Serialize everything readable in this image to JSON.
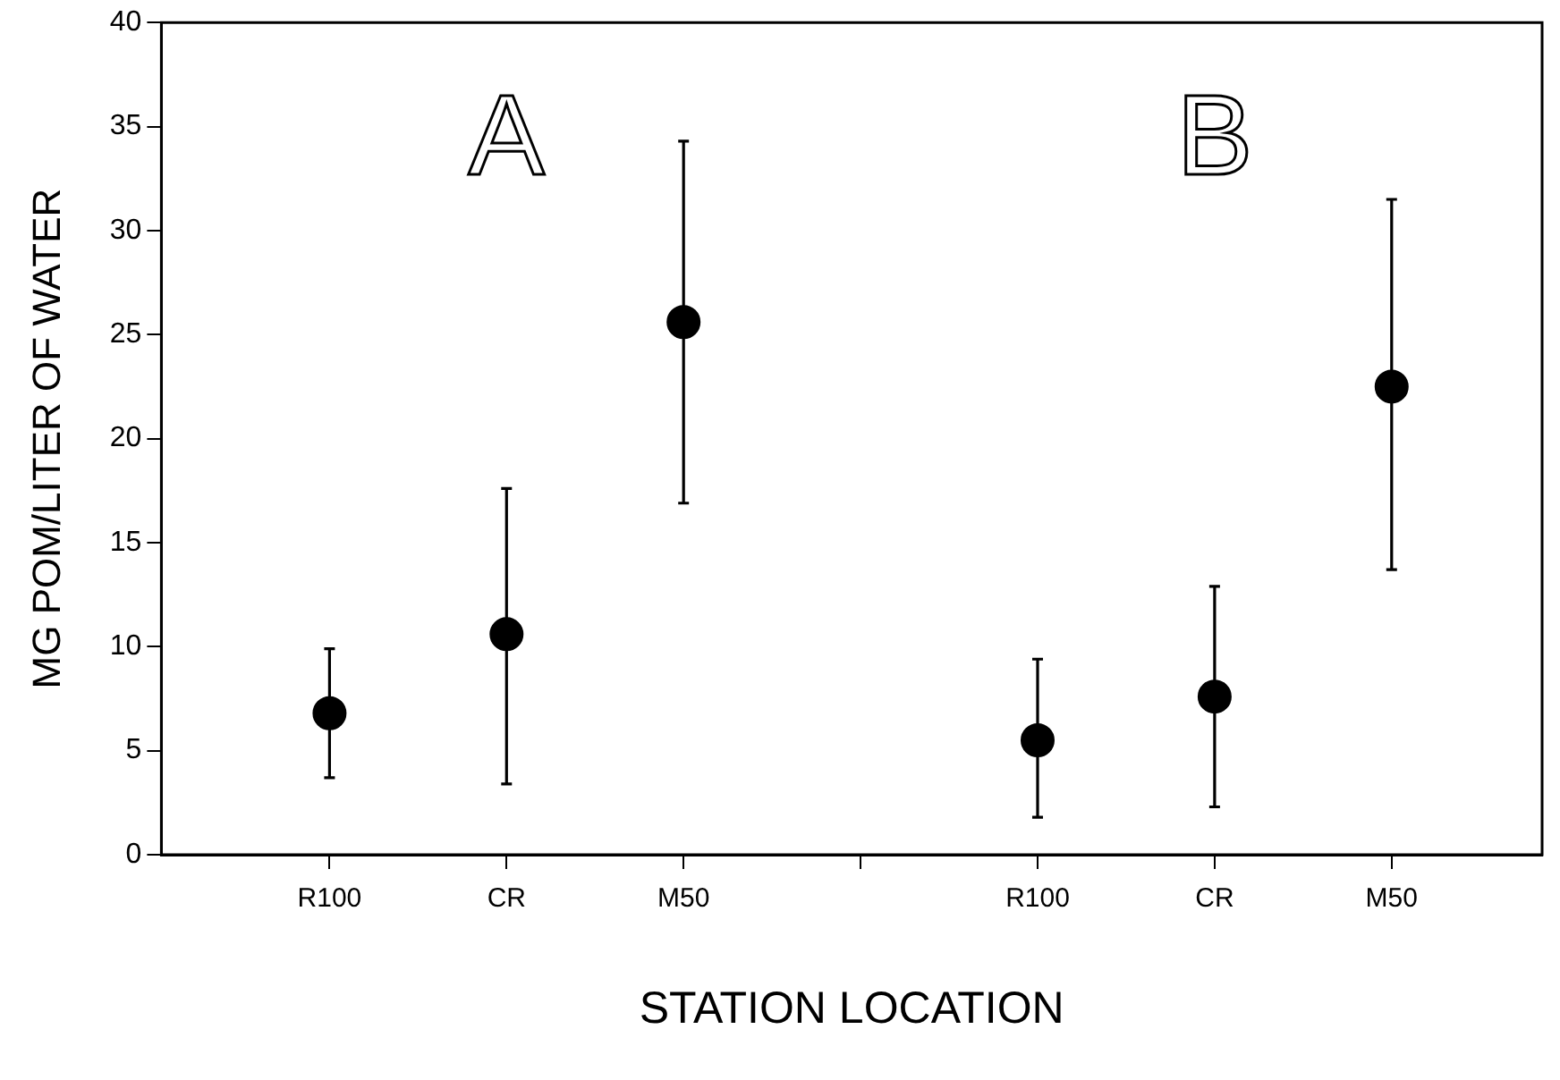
{
  "chart_data": {
    "type": "scatter",
    "xlabel": "STATION LOCATION",
    "ylabel": "MG POM/LITER OF WATER",
    "categories": [
      "R100",
      "CR",
      "M50",
      null,
      "R100",
      "CR",
      "M50"
    ],
    "values": [
      6.8,
      10.6,
      25.6,
      null,
      5.5,
      7.6,
      22.5
    ],
    "errors": [
      [
        3.7,
        9.9
      ],
      [
        3.4,
        17.6
      ],
      [
        16.9,
        34.3
      ],
      null,
      [
        1.8,
        9.4
      ],
      [
        2.3,
        12.9
      ],
      [
        13.7,
        31.5
      ]
    ],
    "color": "#000000",
    "marker": "circle",
    "ylim": [
      0,
      40
    ],
    "yticks": [
      0,
      5,
      10,
      15,
      20,
      25,
      30,
      35,
      40
    ],
    "annotations": [
      "A",
      "B"
    ],
    "grid": false,
    "legend": false
  }
}
